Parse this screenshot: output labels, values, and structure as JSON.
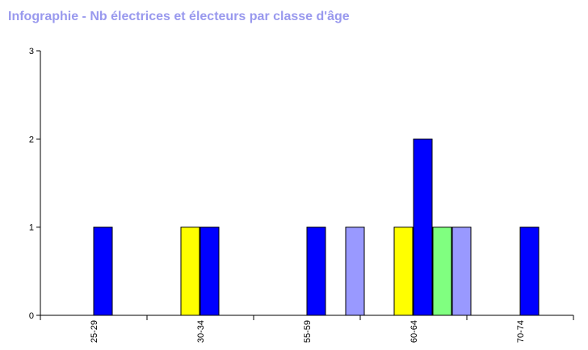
{
  "title": "Infographie - Nb électrices et électeurs par classe d'âge",
  "colors": {
    "title": "#9999ee",
    "axis": "#000000",
    "bar_stroke": "#000000"
  },
  "chart_data": {
    "type": "bar",
    "title": "Infographie - Nb électrices et électeurs par classe d'âge",
    "xlabel": "",
    "ylabel": "",
    "ylim": [
      0,
      3
    ],
    "yticks": [
      "0",
      "1",
      "2",
      "3"
    ],
    "grid": false,
    "legend": "none",
    "categories": [
      "25-29",
      "30-34",
      "55-59",
      "60-64",
      "70-74"
    ],
    "series": [
      {
        "color": "#ffff00",
        "values": [
          0,
          1,
          0,
          1,
          0
        ]
      },
      {
        "color": "#0000ff",
        "values": [
          1,
          1,
          1,
          2,
          1
        ]
      },
      {
        "color": "#80ff80",
        "values": [
          0,
          0,
          0,
          1,
          0
        ]
      },
      {
        "color": "#9999ff",
        "values": [
          0,
          0,
          1,
          1,
          0
        ]
      }
    ]
  }
}
